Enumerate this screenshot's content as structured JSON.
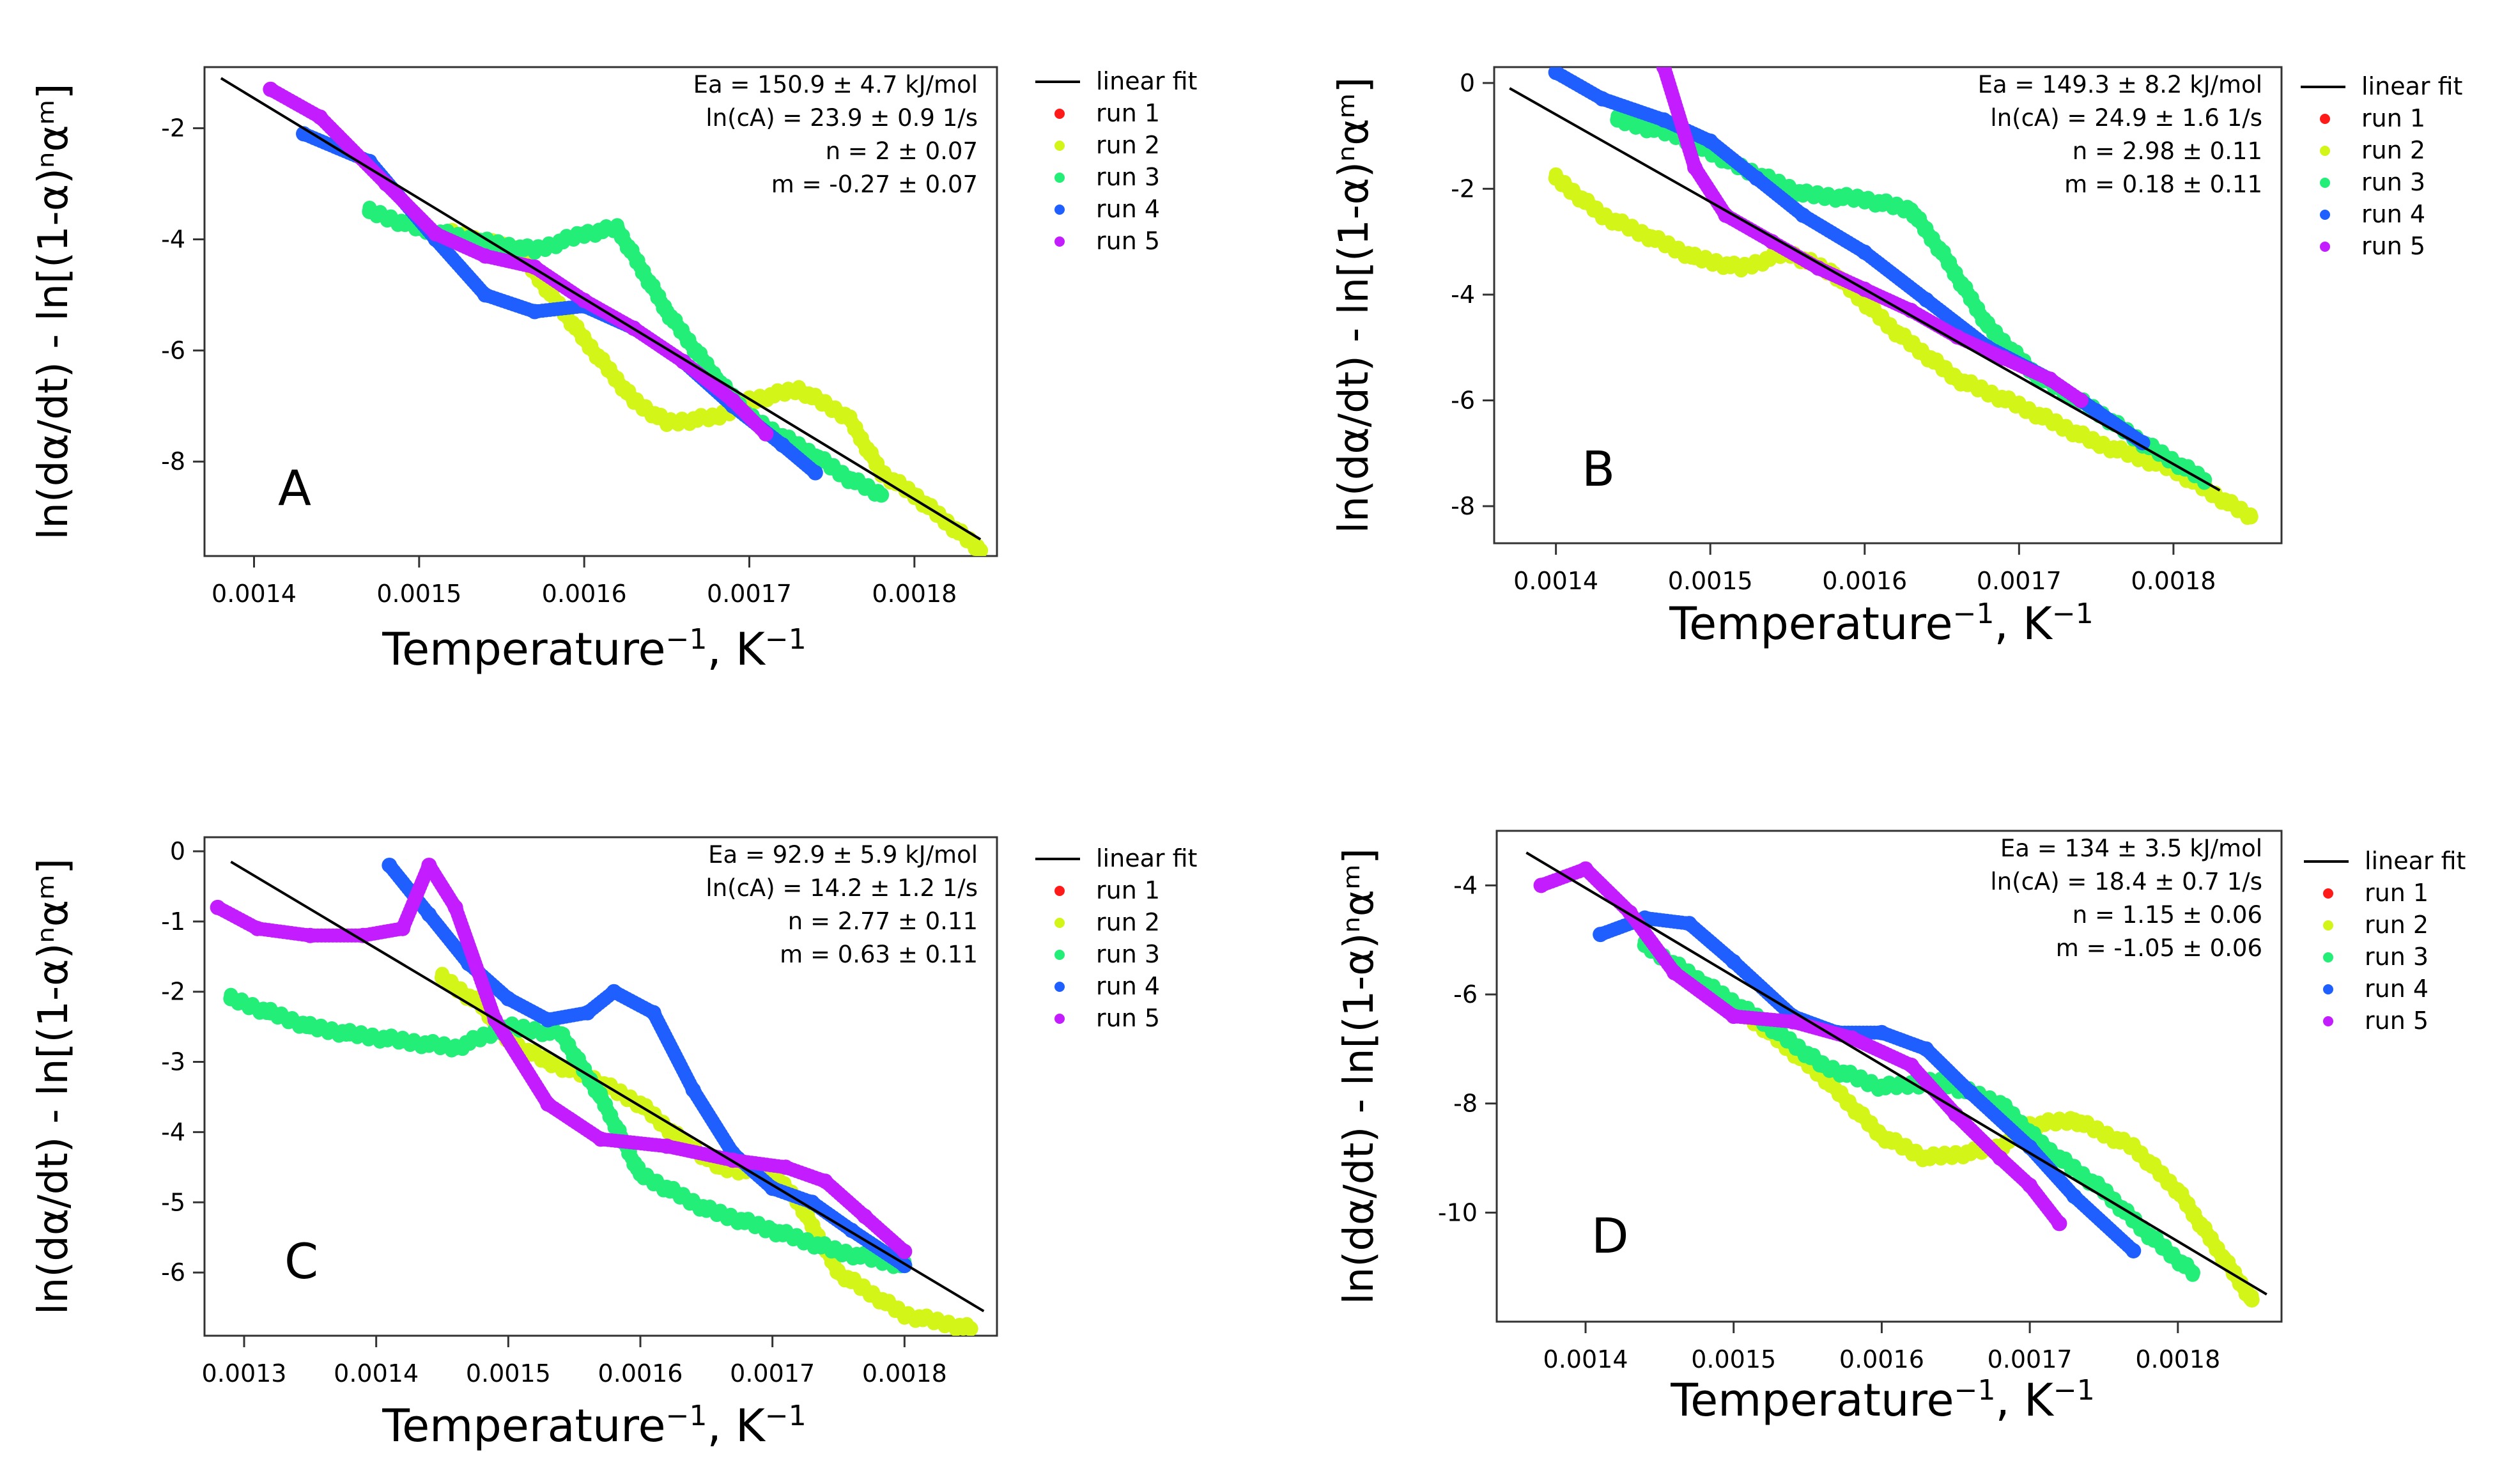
{
  "figure": {
    "legend_labels": [
      "linear fit",
      "run 1",
      "run 2",
      "run 3",
      "run 4",
      "run 5"
    ],
    "colors": {
      "fit": "#000000",
      "run1": "#ff1a1a",
      "run2": "#d4f518",
      "run3": "#22ee78",
      "run4": "#1f5fff",
      "run5": "#c21cff",
      "axes": "#333333"
    }
  },
  "chart_data": [
    {
      "type": "scatter",
      "panel": "A",
      "xlabel": "Temperature",
      "xlabel_sup": "−1",
      "xunit": ", K",
      "xunit_sup": "−1",
      "ylabel": "ln(dα/dt) - ln[(1-α)ⁿαᵐ]",
      "xlim": [
        0.00137,
        0.00185
      ],
      "ylim": [
        -9.7,
        -0.9
      ],
      "xticks": [
        0.0014,
        0.0015,
        0.0016,
        0.0017,
        0.0018
      ],
      "xtick_labels": [
        "0.0014",
        "0.0015",
        "0.0016",
        "0.0017",
        "0.0018"
      ],
      "yticks": [
        -2,
        -4,
        -6,
        -8
      ],
      "ytick_labels": [
        "-2",
        "-4",
        "-6",
        "-8"
      ],
      "annotations": [
        "Ea = 150.9 ± 4.7  kJ/mol",
        "ln(cA) = 23.9 ± 0.9  1/s",
        "n = 2 ± 0.07",
        "m = -0.27 ± 0.07"
      ],
      "fit": {
        "x": [
          0.00138,
          0.00184
        ],
        "y": [
          -1.1,
          -9.4
        ]
      },
      "series": [
        {
          "name": "run 2",
          "x": [
            0.00152,
            0.00156,
            0.0016,
            0.00163,
            0.00165,
            0.00168,
            0.0017,
            0.00173,
            0.00176,
            0.00178,
            0.0018,
            0.00182,
            0.00184
          ],
          "y": [
            -3.9,
            -4.2,
            -5.8,
            -6.9,
            -7.3,
            -7.2,
            -6.9,
            -6.7,
            -7.2,
            -8.2,
            -8.6,
            -9.1,
            -9.6
          ]
        },
        {
          "name": "run 3",
          "x": [
            0.00147,
            0.0015,
            0.00153,
            0.00157,
            0.0016,
            0.00162,
            0.00165,
            0.00168,
            0.0017,
            0.00174,
            0.00176,
            0.00178
          ],
          "y": [
            -3.5,
            -3.8,
            -4.0,
            -4.2,
            -3.9,
            -3.8,
            -5.3,
            -6.5,
            -7.2,
            -7.9,
            -8.3,
            -8.6
          ]
        },
        {
          "name": "run 4",
          "x": [
            0.00143,
            0.00147,
            0.00151,
            0.00154,
            0.00157,
            0.0016,
            0.00163,
            0.00166,
            0.00169,
            0.00172,
            0.00174
          ],
          "y": [
            -2.1,
            -2.6,
            -4.0,
            -5.0,
            -5.3,
            -5.2,
            -5.6,
            -6.2,
            -7.0,
            -7.7,
            -8.2
          ]
        },
        {
          "name": "run 5",
          "x": [
            0.00141,
            0.00144,
            0.00148,
            0.00151,
            0.00154,
            0.00157,
            0.0016,
            0.00163,
            0.00166,
            0.00169,
            0.00171
          ],
          "y": [
            -1.3,
            -1.8,
            -3.0,
            -3.9,
            -4.3,
            -4.5,
            -5.1,
            -5.6,
            -6.2,
            -6.9,
            -7.5
          ]
        }
      ]
    },
    {
      "type": "scatter",
      "panel": "B",
      "xlabel": "Temperature",
      "xlabel_sup": "−1",
      "xunit": ", K",
      "xunit_sup": "−1",
      "ylabel": "ln(dα/dt) - ln[(1-α)ⁿαᵐ]",
      "xlim": [
        0.00136,
        0.00187
      ],
      "ylim": [
        -8.7,
        0.3
      ],
      "xticks": [
        0.0014,
        0.0015,
        0.0016,
        0.0017,
        0.0018
      ],
      "xtick_labels": [
        "0.0014",
        "0.0015",
        "0.0016",
        "0.0017",
        "0.0018"
      ],
      "yticks": [
        0,
        -2,
        -4,
        -6,
        -8
      ],
      "ytick_labels": [
        "0",
        "-2",
        "-4",
        "-6",
        "-8"
      ],
      "annotations": [
        "Ea = 149.3 ± 8.2  kJ/mol",
        "ln(cA) = 24.9 ± 1.6  1/s",
        "n = 2.98 ± 0.11",
        "m = 0.18 ± 0.11"
      ],
      "fit": {
        "x": [
          0.00137,
          0.00183
        ],
        "y": [
          -0.1,
          -7.7
        ]
      },
      "series": [
        {
          "name": "run 2",
          "x": [
            0.0014,
            0.00143,
            0.00146,
            0.00149,
            0.00152,
            0.00155,
            0.00158,
            0.00162,
            0.00166,
            0.0017,
            0.00175,
            0.0018,
            0.00185
          ],
          "y": [
            -1.8,
            -2.5,
            -2.9,
            -3.3,
            -3.5,
            -3.2,
            -3.6,
            -4.7,
            -5.6,
            -6.1,
            -6.8,
            -7.3,
            -8.2
          ]
        },
        {
          "name": "run 3",
          "x": [
            0.00144,
            0.00148,
            0.00152,
            0.00156,
            0.0016,
            0.00163,
            0.00165,
            0.00168,
            0.00171,
            0.00175,
            0.00178,
            0.00182
          ],
          "y": [
            -0.7,
            -1.0,
            -1.6,
            -2.1,
            -2.2,
            -2.4,
            -3.2,
            -4.6,
            -5.5,
            -6.2,
            -6.8,
            -7.5
          ]
        },
        {
          "name": "run 4",
          "x": [
            0.0014,
            0.00143,
            0.00147,
            0.0015,
            0.00153,
            0.00156,
            0.0016,
            0.00164,
            0.00168,
            0.00172,
            0.00175,
            0.00178
          ],
          "y": [
            0.2,
            -0.3,
            -0.7,
            -1.1,
            -1.8,
            -2.5,
            -3.2,
            -4.1,
            -5.0,
            -5.6,
            -6.2,
            -6.8
          ]
        },
        {
          "name": "run 5",
          "x": [
            0.00147,
            0.00149,
            0.00151,
            0.00154,
            0.00157,
            0.0016,
            0.00163,
            0.00166,
            0.00169,
            0.00172,
            0.00174
          ],
          "y": [
            0.3,
            -1.6,
            -2.5,
            -3.0,
            -3.5,
            -3.9,
            -4.3,
            -4.8,
            -5.2,
            -5.6,
            -6.0
          ]
        }
      ]
    },
    {
      "type": "scatter",
      "panel": "C",
      "xlabel": "Temperature",
      "xlabel_sup": "−1",
      "xunit": ", K",
      "xunit_sup": "−1",
      "ylabel": "ln(dα/dt) - ln[(1-α)ⁿαᵐ]",
      "xlim": [
        0.00127,
        0.00187
      ],
      "ylim": [
        -6.9,
        0.2
      ],
      "xticks": [
        0.0013,
        0.0014,
        0.0015,
        0.0016,
        0.0017,
        0.0018
      ],
      "xtick_labels": [
        "0.0013",
        "0.0014",
        "0.0015",
        "0.0016",
        "0.0017",
        "0.0018"
      ],
      "yticks": [
        0,
        -1,
        -2,
        -3,
        -4,
        -5,
        -6
      ],
      "ytick_labels": [
        "0",
        "-1",
        "-2",
        "-3",
        "-4",
        "-5",
        "-6"
      ],
      "annotations": [
        "Ea = 92.9 ± 5.9  kJ/mol",
        "ln(cA) = 14.2 ± 1.2  1/s",
        "n = 2.77 ± 0.11",
        "m = 0.63 ± 0.11"
      ],
      "fit": {
        "x": [
          0.00129,
          0.00186
        ],
        "y": [
          -0.15,
          -6.55
        ]
      },
      "series": [
        {
          "name": "run 2",
          "x": [
            0.00145,
            0.00148,
            0.0015,
            0.00153,
            0.00156,
            0.0016,
            0.00163,
            0.00166,
            0.0017,
            0.00172,
            0.00175,
            0.0018,
            0.00185
          ],
          "y": [
            -1.8,
            -2.2,
            -2.7,
            -3.0,
            -3.2,
            -3.6,
            -4.1,
            -4.5,
            -4.6,
            -5.0,
            -6.0,
            -6.6,
            -6.8
          ]
        },
        {
          "name": "run 3",
          "x": [
            0.00129,
            0.00132,
            0.00135,
            0.00138,
            0.00142,
            0.00146,
            0.0015,
            0.00154,
            0.00157,
            0.0016,
            0.00165,
            0.0017,
            0.00175,
            0.0018
          ],
          "y": [
            -2.1,
            -2.3,
            -2.5,
            -2.6,
            -2.7,
            -2.8,
            -2.5,
            -2.6,
            -3.5,
            -4.6,
            -5.1,
            -5.4,
            -5.7,
            -5.9
          ]
        },
        {
          "name": "run 4",
          "x": [
            0.00141,
            0.00144,
            0.00147,
            0.0015,
            0.00153,
            0.00156,
            0.00158,
            0.00161,
            0.00164,
            0.00167,
            0.0017,
            0.00173,
            0.00176,
            0.0018
          ],
          "y": [
            -0.2,
            -0.9,
            -1.6,
            -2.1,
            -2.4,
            -2.3,
            -2.0,
            -2.3,
            -3.4,
            -4.3,
            -4.8,
            -5.0,
            -5.4,
            -5.9
          ]
        },
        {
          "name": "run 5",
          "x": [
            0.00128,
            0.00131,
            0.00135,
            0.00139,
            0.00142,
            0.00144,
            0.00146,
            0.00149,
            0.00153,
            0.00157,
            0.00162,
            0.00167,
            0.00171,
            0.00174,
            0.00177,
            0.0018
          ],
          "y": [
            -0.8,
            -1.1,
            -1.2,
            -1.2,
            -1.1,
            -0.2,
            -0.8,
            -2.4,
            -3.6,
            -4.1,
            -4.2,
            -4.4,
            -4.5,
            -4.7,
            -5.2,
            -5.7
          ]
        }
      ]
    },
    {
      "type": "scatter",
      "panel": "D",
      "xlabel": "Temperature",
      "xlabel_sup": "−1",
      "xunit": ", K",
      "xunit_sup": "−1",
      "ylabel": "ln(dα/dt) - ln[(1-α)ⁿαᵐ]",
      "xlim": [
        0.00134,
        0.00187
      ],
      "ylim": [
        -12.0,
        -3.0
      ],
      "xticks": [
        0.0014,
        0.0015,
        0.0016,
        0.0017,
        0.0018
      ],
      "xtick_labels": [
        "0.0014",
        "0.0015",
        "0.0016",
        "0.0017",
        "0.0018"
      ],
      "yticks": [
        -4,
        -6,
        -8,
        -10
      ],
      "ytick_labels": [
        "-4",
        "-6",
        "-8",
        "-10"
      ],
      "annotations": [
        "Ea = 134 ± 3.5  kJ/mol",
        "ln(cA) = 18.4 ± 0.7  1/s",
        "n = 1.15 ± 0.06",
        "m = -1.05 ± 0.06"
      ],
      "fit": {
        "x": [
          0.00136,
          0.00186
        ],
        "y": [
          -3.4,
          -11.5
        ]
      },
      "series": [
        {
          "name": "run 2",
          "x": [
            0.00148,
            0.00152,
            0.00156,
            0.0016,
            0.00163,
            0.00166,
            0.00168,
            0.0017,
            0.00173,
            0.00177,
            0.0018,
            0.00183,
            0.00185
          ],
          "y": [
            -5.9,
            -6.6,
            -7.5,
            -8.6,
            -9.0,
            -8.9,
            -8.8,
            -8.4,
            -8.3,
            -8.8,
            -9.6,
            -10.8,
            -11.6
          ]
        },
        {
          "name": "run 3",
          "x": [
            0.00144,
            0.00148,
            0.00152,
            0.00156,
            0.0016,
            0.00164,
            0.00168,
            0.00171,
            0.00175,
            0.00178,
            0.00181
          ],
          "y": [
            -5.1,
            -5.8,
            -6.5,
            -7.3,
            -7.7,
            -7.6,
            -8.0,
            -8.8,
            -9.6,
            -10.4,
            -11.1
          ]
        },
        {
          "name": "run 4",
          "x": [
            0.00141,
            0.00144,
            0.00147,
            0.0015,
            0.00154,
            0.00157,
            0.0016,
            0.00163,
            0.00166,
            0.0017,
            0.00173,
            0.00177
          ],
          "y": [
            -4.9,
            -4.6,
            -4.7,
            -5.4,
            -6.4,
            -6.7,
            -6.7,
            -7.0,
            -7.8,
            -8.8,
            -9.7,
            -10.7
          ]
        },
        {
          "name": "run 5",
          "x": [
            0.00137,
            0.0014,
            0.00143,
            0.00146,
            0.0015,
            0.00154,
            0.00158,
            0.00162,
            0.00165,
            0.00168,
            0.0017,
            0.00172
          ],
          "y": [
            -4.0,
            -3.7,
            -4.5,
            -5.6,
            -6.4,
            -6.5,
            -6.8,
            -7.3,
            -8.2,
            -9.0,
            -9.5,
            -10.2
          ]
        }
      ]
    }
  ]
}
